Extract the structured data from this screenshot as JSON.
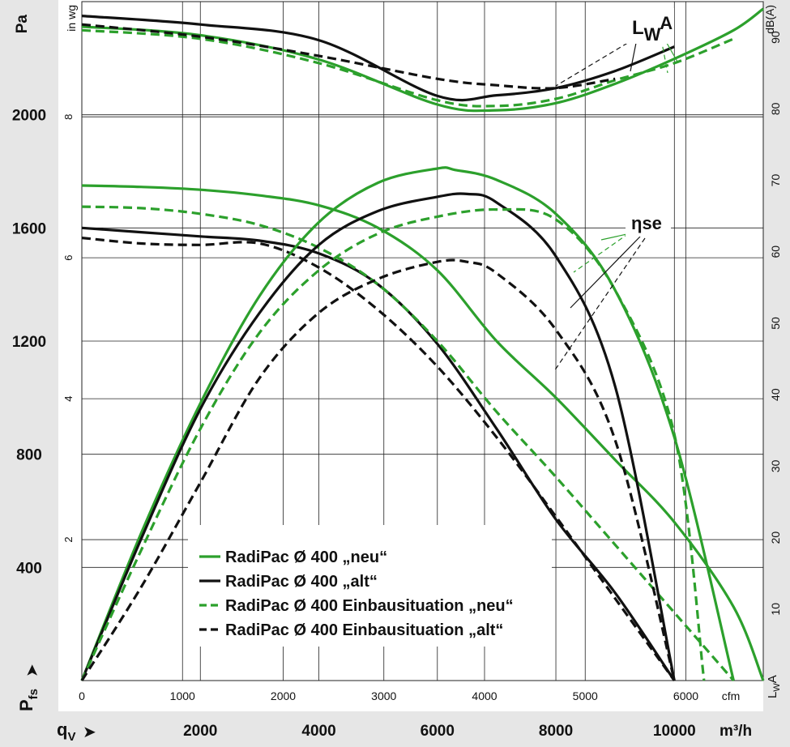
{
  "colors": {
    "neu": "#2ca02c",
    "alt": "#111111",
    "band": "#e6e6e6"
  },
  "chart_data": {
    "type": "line",
    "title": "",
    "left_axis": {
      "unit_label": "Pa",
      "secondary_unit_label": "in wg",
      "symbol": "P",
      "symbol_sub": "fs",
      "arrow": "➤",
      "ylim": [
        0,
        2400
      ],
      "ticks": [
        400,
        800,
        1200,
        1600,
        2000
      ],
      "tick_labels": [
        "400",
        "800",
        "1200",
        "1600",
        "2000"
      ],
      "inwg_ticks": [
        2,
        4,
        6,
        8
      ],
      "inwg_tick_labels": [
        "2",
        "4",
        "6",
        "8"
      ]
    },
    "right_axis": {
      "unit_label": "dB(A)",
      "symbol": "L",
      "symbol_sub": "W",
      "symbol_suffix": "A",
      "ylim": [
        0,
        95
      ],
      "ticks": [
        10,
        20,
        30,
        40,
        50,
        60,
        70,
        80,
        90
      ],
      "tick_labels": [
        "10",
        "20",
        "30",
        "40",
        "50",
        "60",
        "70",
        "80",
        "90"
      ]
    },
    "x_axis": {
      "cfm_label": "cfm",
      "cfm_ticks": [
        0,
        1000,
        2000,
        3000,
        4000,
        5000,
        6000
      ],
      "cfm_tick_labels": [
        "0",
        "1000",
        "2000",
        "3000",
        "4000",
        "5000",
        "6000"
      ],
      "m3h_label": "m³/h",
      "m3h_ticks": [
        2000,
        4000,
        6000,
        8000,
        10000
      ],
      "m3h_tick_labels": [
        "2000",
        "4000",
        "6000",
        "8000",
        "10000"
      ],
      "symbol": "q",
      "symbol_sub": "V",
      "arrow": "➤",
      "xlim_m3h": [
        0,
        11500
      ]
    },
    "annotations": {
      "lwa": {
        "main": "L",
        "sub": "W",
        "suffix": "A"
      },
      "eta": "ηse"
    },
    "legend": [
      {
        "label": "RadiPac Ø 400 „neu“",
        "color_key": "neu",
        "dashed": false
      },
      {
        "label": "RadiPac Ø 400 „alt“",
        "color_key": "alt",
        "dashed": false
      },
      {
        "label": "RadiPac Ø 400 Einbausituation „neu“",
        "color_key": "neu",
        "dashed": true
      },
      {
        "label": "RadiPac Ø 400 Einbausituation „alt“",
        "color_key": "alt",
        "dashed": true
      }
    ],
    "series": [
      {
        "name": "RadiPac Ø 400 „neu“ Pfs",
        "quantity": "pressure_pa",
        "color_key": "neu",
        "dashed": false,
        "x_m3h": [
          0,
          1000,
          2000,
          3000,
          4000,
          5000,
          6000,
          7000,
          8000,
          9000,
          10000,
          11000,
          11500
        ],
        "y": [
          1750,
          1745,
          1735,
          1715,
          1680,
          1600,
          1450,
          1200,
          1000,
          780,
          560,
          260,
          0
        ]
      },
      {
        "name": "RadiPac Ø 400 „alt“ Pfs",
        "quantity": "pressure_pa",
        "color_key": "alt",
        "dashed": false,
        "x_m3h": [
          0,
          1000,
          2000,
          3000,
          4000,
          5000,
          6000,
          7000,
          8000,
          9000,
          10000
        ],
        "y": [
          1600,
          1585,
          1570,
          1555,
          1510,
          1400,
          1190,
          890,
          570,
          310,
          0
        ]
      },
      {
        "name": "RadiPac Ø 400 Einbausituation „neu“ Pfs",
        "quantity": "pressure_pa",
        "color_key": "neu",
        "dashed": true,
        "x_m3h": [
          0,
          1000,
          2000,
          3000,
          4000,
          5000,
          6000,
          7000,
          8000,
          9000,
          10000,
          10500,
          11000
        ],
        "y": [
          1675,
          1670,
          1650,
          1610,
          1530,
          1400,
          1200,
          950,
          720,
          480,
          240,
          120,
          0
        ]
      },
      {
        "name": "RadiPac Ø 400 Einbausituation „alt“ Pfs",
        "quantity": "pressure_pa",
        "color_key": "alt",
        "dashed": true,
        "x_m3h": [
          0,
          1000,
          2000,
          3000,
          4000,
          5000,
          6000,
          7000,
          8000,
          9000,
          10000
        ],
        "y": [
          1565,
          1545,
          1540,
          1545,
          1460,
          1310,
          1110,
          860,
          580,
          290,
          0
        ]
      },
      {
        "name": "RadiPac Ø 400 „neu“ ηse",
        "quantity": "efficiency_curve_pa",
        "color_key": "neu",
        "dashed": false,
        "x_m3h": [
          0,
          1000,
          2000,
          3000,
          4000,
          5000,
          6000,
          6300,
          7000,
          8000,
          9000,
          10000,
          11000
        ],
        "y": [
          0,
          520,
          980,
          1360,
          1620,
          1760,
          1810,
          1805,
          1770,
          1650,
          1380,
          860,
          0
        ]
      },
      {
        "name": "RadiPac Ø 400 „alt“ ηse",
        "quantity": "efficiency_curve_pa",
        "color_key": "alt",
        "dashed": false,
        "x_m3h": [
          0,
          1000,
          2000,
          3000,
          4000,
          5000,
          6000,
          6500,
          7000,
          8000,
          9000,
          10000
        ],
        "y": [
          0,
          500,
          960,
          1300,
          1540,
          1660,
          1710,
          1720,
          1690,
          1500,
          1040,
          0
        ]
      },
      {
        "name": "RadiPac Ø 400 Einbausituation „neu“ ηse",
        "quantity": "efficiency_curve_pa",
        "color_key": "neu",
        "dashed": true,
        "x_m3h": [
          0,
          1000,
          2000,
          3000,
          4000,
          5000,
          6000,
          7000,
          8000,
          9000,
          10000,
          10500
        ],
        "y": [
          0,
          460,
          890,
          1230,
          1450,
          1580,
          1640,
          1665,
          1630,
          1380,
          870,
          0
        ]
      },
      {
        "name": "RadiPac Ø 400 Einbausituation „alt“ ηse",
        "quantity": "efficiency_curve_pa",
        "color_key": "alt",
        "dashed": true,
        "x_m3h": [
          0,
          1000,
          2000,
          3000,
          4000,
          5000,
          6000,
          6500,
          7000,
          8000,
          9000,
          10000
        ],
        "y": [
          0,
          330,
          700,
          1070,
          1300,
          1420,
          1480,
          1480,
          1440,
          1240,
          850,
          0
        ]
      },
      {
        "name": "RadiPac Ø 400 „neu“ LWA",
        "quantity": "sound_power_dba",
        "color_key": "neu",
        "dashed": false,
        "x_m3h": [
          0,
          2000,
          4000,
          6000,
          7000,
          8000,
          9000,
          10000,
          11000,
          11500
        ],
        "y": [
          91.5,
          90.3,
          86.9,
          80.6,
          79.8,
          80.8,
          83.5,
          87.0,
          91.0,
          94.0
        ]
      },
      {
        "name": "RadiPac Ø 400 „alt“ LWA",
        "quantity": "sound_power_dba",
        "color_key": "alt",
        "dashed": false,
        "x_m3h": [
          0,
          2000,
          4000,
          6000,
          7000,
          8000,
          9000,
          10000
        ],
        "y": [
          93.0,
          91.8,
          89.6,
          81.8,
          81.9,
          82.9,
          85.3,
          88.7
        ]
      },
      {
        "name": "RadiPac Ø 400 Einbausituation „neu“ LWA",
        "quantity": "sound_power_dba",
        "color_key": "neu",
        "dashed": true,
        "x_m3h": [
          0,
          2000,
          4000,
          6000,
          7000,
          8000,
          9000,
          10000,
          11000
        ],
        "y": [
          91.0,
          89.8,
          86.4,
          81.2,
          80.4,
          81.4,
          84.0,
          86.4,
          89.8
        ]
      },
      {
        "name": "RadiPac Ø 400 Einbausituation „alt“ LWA",
        "quantity": "sound_power_dba",
        "color_key": "alt",
        "dashed": true,
        "x_m3h": [
          0,
          2000,
          4000,
          6000,
          7000,
          8000,
          9000
        ],
        "y": [
          91.8,
          90.1,
          87.4,
          84.2,
          83.3,
          82.9,
          84.2
        ]
      }
    ]
  }
}
